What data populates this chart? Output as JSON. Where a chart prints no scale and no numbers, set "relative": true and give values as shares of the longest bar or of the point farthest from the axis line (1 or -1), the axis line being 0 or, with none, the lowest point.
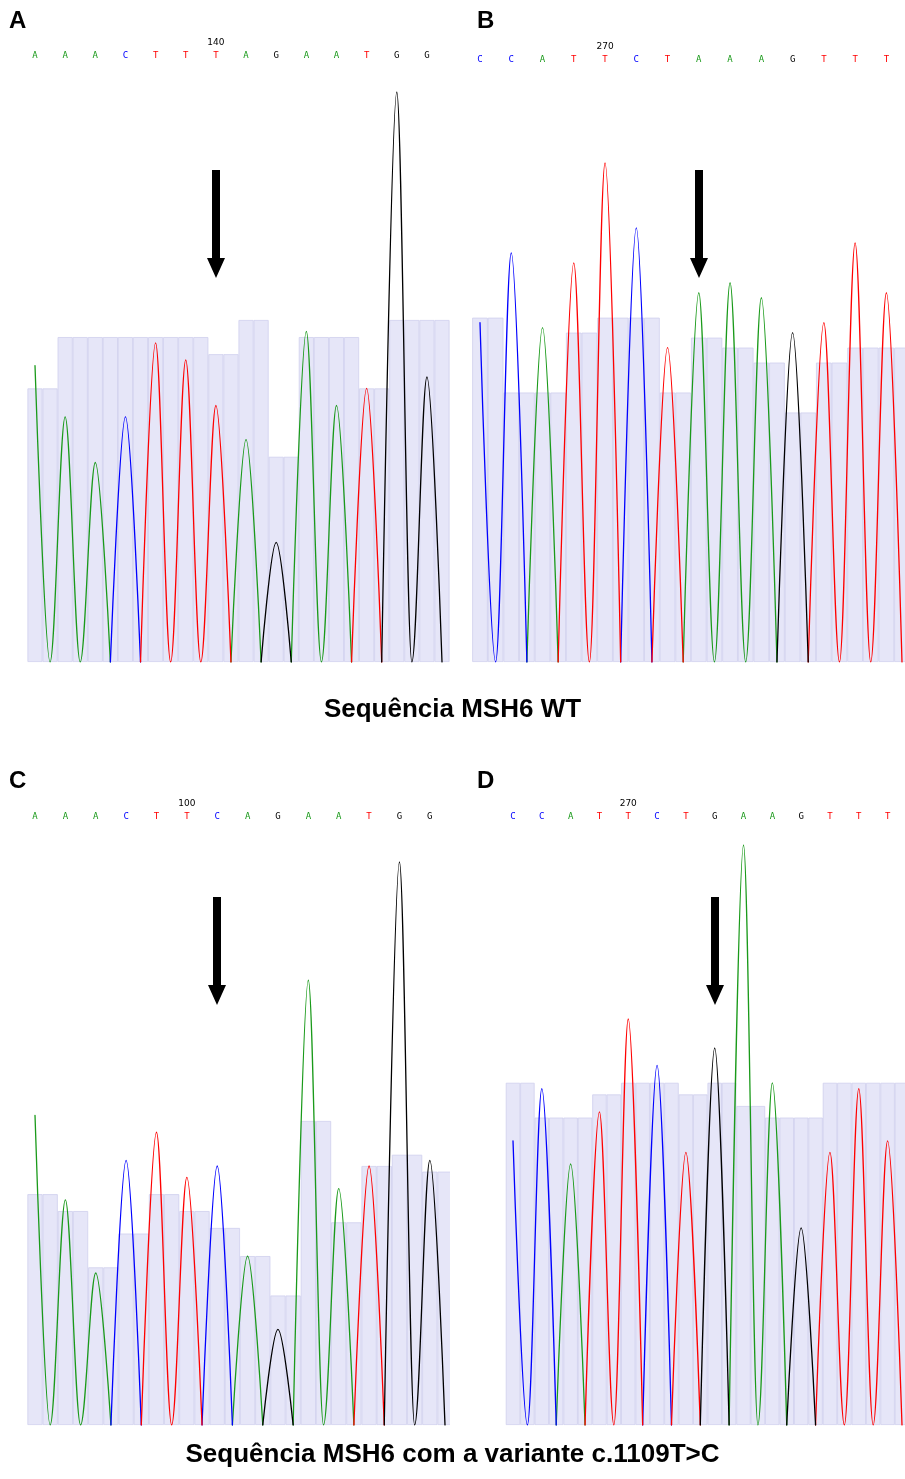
{
  "chart_data": [
    {
      "type": "line",
      "title": "A",
      "relative": true,
      "annotations": [
        "140"
      ],
      "categories": [
        "A",
        null,
        "A",
        null,
        "A",
        null,
        "C",
        null,
        "T",
        null,
        "T",
        null,
        "T",
        null,
        "A",
        null,
        "G",
        null,
        "A",
        null,
        "A",
        null,
        "T",
        null,
        "G",
        null,
        "G",
        null
      ],
      "series": [
        {
          "type": "bar",
          "color": "#e6e6f8",
          "values": [
            0.48,
            0.48,
            0.57,
            0.57,
            0.57,
            0.57,
            0.57,
            0.57,
            0.57,
            0.57,
            0.57,
            0.57,
            0.54,
            0.54,
            0.6,
            0.6,
            0.36,
            0.36,
            0.57,
            0.57,
            0.57,
            0.57,
            0.48,
            0.48,
            0.6,
            0.6,
            0.6,
            0.6
          ]
        },
        {
          "color": "#1a9a1a",
          "values": [
            0.52,
            0,
            0.43,
            0,
            0.35,
            0,
            null,
            null,
            null,
            null,
            null,
            null,
            null,
            0,
            0.39,
            0,
            null,
            0,
            0.58,
            0,
            0.45,
            0,
            null,
            null,
            null,
            null,
            null,
            null
          ]
        },
        {
          "color": "#0000ff",
          "values": [
            null,
            null,
            null,
            null,
            null,
            0,
            0.43,
            0,
            null,
            null,
            null,
            null,
            null,
            null,
            null,
            null,
            null,
            null,
            null,
            null,
            null,
            null,
            null,
            null,
            null,
            null,
            null,
            null
          ]
        },
        {
          "color": "#ff0000",
          "values": [
            null,
            null,
            null,
            null,
            null,
            null,
            null,
            0,
            0.56,
            0,
            0.53,
            0,
            0.45,
            0,
            null,
            null,
            null,
            null,
            null,
            null,
            null,
            0,
            0.48,
            0,
            null,
            null,
            null,
            null
          ]
        },
        {
          "color": "#000000",
          "values": [
            null,
            null,
            null,
            null,
            null,
            null,
            null,
            null,
            null,
            null,
            null,
            null,
            null,
            null,
            null,
            0,
            0.21,
            0,
            null,
            null,
            null,
            null,
            null,
            0,
            1,
            0,
            0.5,
            0
          ]
        }
      ]
    },
    {
      "type": "line",
      "title": "B",
      "relative": true,
      "annotations": [
        "270"
      ],
      "categories": [
        "C",
        null,
        "C",
        null,
        "A",
        null,
        "T",
        null,
        "T",
        null,
        "C",
        null,
        "T",
        null,
        "A",
        null,
        "A",
        null,
        "A",
        null,
        "G",
        null,
        "T",
        null,
        "T",
        null,
        "T",
        null
      ],
      "series": [
        {
          "type": "bar",
          "color": "#e6e6f8",
          "values": [
            0.69,
            0.69,
            0.54,
            0.54,
            0.54,
            0.54,
            0.66,
            0.66,
            0.69,
            0.69,
            0.69,
            0.69,
            0.54,
            0.54,
            0.65,
            0.65,
            0.63,
            0.63,
            0.6,
            0.6,
            0.5,
            0.5,
            0.6,
            0.6,
            0.63,
            0.63,
            0.63,
            0.63
          ]
        },
        {
          "color": "#1a9a1a",
          "values": [
            null,
            null,
            null,
            0,
            0.67,
            0,
            null,
            null,
            null,
            null,
            null,
            null,
            null,
            0,
            0.74,
            0,
            0.76,
            0,
            0.73,
            0,
            null,
            null,
            null,
            null,
            null,
            null,
            null,
            null
          ]
        },
        {
          "color": "#0000ff",
          "values": [
            0.68,
            0,
            0.82,
            0,
            null,
            null,
            null,
            null,
            null,
            0,
            0.87,
            0,
            null,
            null,
            null,
            null,
            null,
            null,
            null,
            null,
            null,
            null,
            null,
            null,
            null,
            null,
            null,
            null
          ]
        },
        {
          "color": "#ff0000",
          "values": [
            null,
            null,
            null,
            null,
            null,
            0,
            0.8,
            0,
            1,
            0,
            null,
            0,
            0.63,
            0,
            null,
            null,
            null,
            null,
            null,
            null,
            null,
            0,
            0.68,
            0,
            0.84,
            0,
            0.74,
            0
          ]
        },
        {
          "color": "#000000",
          "values": [
            null,
            null,
            null,
            null,
            null,
            null,
            null,
            null,
            null,
            null,
            null,
            null,
            null,
            null,
            null,
            null,
            null,
            null,
            null,
            0,
            0.66,
            0,
            null,
            null,
            null,
            null,
            null,
            null
          ]
        }
      ]
    },
    {
      "type": "other",
      "title": "Sequência MSH6 WT"
    },
    {
      "type": "line",
      "title": "C",
      "relative": true,
      "annotations": [
        "100"
      ],
      "categories": [
        "A",
        null,
        "A",
        null,
        "A",
        null,
        "C",
        null,
        "T",
        null,
        "T",
        null,
        "C",
        null,
        "A",
        null,
        "G",
        null,
        "A",
        null,
        "A",
        null,
        "T",
        null,
        "G",
        null,
        "G",
        null
      ],
      "series": [
        {
          "type": "bar",
          "color": "#e6e6f8",
          "values": [
            0.41,
            0.41,
            0.38,
            0.38,
            0.28,
            0.28,
            0.34,
            0.34,
            0.41,
            0.41,
            0.38,
            0.38,
            0.35,
            0.35,
            0.3,
            0.3,
            0.23,
            0.23,
            0.54,
            0.54,
            0.36,
            0.36,
            0.46,
            0.46,
            0.48,
            0.48,
            0.45,
            0.45
          ]
        },
        {
          "color": "#1a9a1a",
          "values": [
            0.55,
            0,
            0.4,
            0,
            0.27,
            0,
            null,
            null,
            null,
            null,
            null,
            null,
            null,
            0,
            0.3,
            0,
            null,
            0,
            0.79,
            0,
            0.42,
            0,
            null,
            null,
            null,
            null,
            null,
            null
          ]
        },
        {
          "color": "#0000ff",
          "values": [
            null,
            null,
            null,
            null,
            null,
            0,
            0.47,
            0,
            null,
            null,
            null,
            0,
            0.46,
            0,
            null,
            null,
            null,
            null,
            null,
            null,
            null,
            null,
            null,
            null,
            null,
            null,
            null,
            null
          ]
        },
        {
          "color": "#ff0000",
          "values": [
            null,
            null,
            null,
            null,
            null,
            null,
            null,
            0,
            0.52,
            0,
            0.44,
            0,
            null,
            null,
            null,
            null,
            null,
            null,
            null,
            null,
            null,
            0,
            0.46,
            0,
            null,
            null,
            null,
            null
          ]
        },
        {
          "color": "#000000",
          "values": [
            null,
            null,
            null,
            null,
            null,
            null,
            null,
            null,
            null,
            null,
            null,
            null,
            null,
            null,
            null,
            0,
            0.17,
            0,
            null,
            null,
            null,
            null,
            null,
            0,
            1,
            0,
            0.47,
            0
          ]
        }
      ]
    },
    {
      "type": "line",
      "title": "D",
      "relative": true,
      "annotations": [
        "270"
      ],
      "categories": [
        "C",
        null,
        "C",
        null,
        "A",
        null,
        "T",
        null,
        "T",
        null,
        "C",
        null,
        "T",
        null,
        "G",
        null,
        "A",
        null,
        "A",
        null,
        "G",
        null,
        "T",
        null,
        "T",
        null,
        "T",
        null
      ],
      "series": [
        {
          "type": "bar",
          "color": "#e6e6f8",
          "values": [
            0.59,
            0.59,
            0.53,
            0.53,
            0.53,
            0.53,
            0.57,
            0.57,
            0.59,
            0.59,
            0.59,
            0.59,
            0.57,
            0.57,
            0.59,
            0.59,
            0.55,
            0.55,
            0.53,
            0.53,
            0.53,
            0.53,
            0.59,
            0.59,
            0.59,
            0.59,
            0.59,
            0.59
          ]
        },
        {
          "color": "#1a9a1a",
          "values": [
            null,
            null,
            null,
            0,
            0.45,
            0,
            null,
            null,
            null,
            null,
            null,
            null,
            null,
            null,
            null,
            0,
            1,
            0,
            0.59,
            0,
            null,
            null,
            null,
            null,
            null,
            null,
            null,
            null
          ]
        },
        {
          "color": "#0000ff",
          "values": [
            0.49,
            0,
            0.58,
            0,
            null,
            null,
            null,
            null,
            null,
            0,
            0.62,
            0,
            null,
            null,
            null,
            null,
            null,
            null,
            null,
            null,
            null,
            null,
            null,
            null,
            null,
            null,
            null,
            null
          ]
        },
        {
          "color": "#ff0000",
          "values": [
            null,
            null,
            null,
            null,
            null,
            0,
            0.54,
            0,
            0.7,
            0,
            null,
            0,
            0.47,
            0,
            null,
            null,
            null,
            null,
            null,
            null,
            null,
            0,
            0.47,
            0,
            0.58,
            0,
            0.49,
            0
          ]
        },
        {
          "color": "#000000",
          "values": [
            null,
            null,
            null,
            null,
            null,
            null,
            null,
            null,
            null,
            null,
            null,
            null,
            null,
            0,
            0.65,
            0,
            null,
            null,
            null,
            0,
            0.34,
            0,
            null,
            null,
            null,
            null,
            null,
            null
          ]
        }
      ]
    },
    {
      "type": "other",
      "title": "Sequência MSH6 com a variante c.1109T>C"
    }
  ]
}
